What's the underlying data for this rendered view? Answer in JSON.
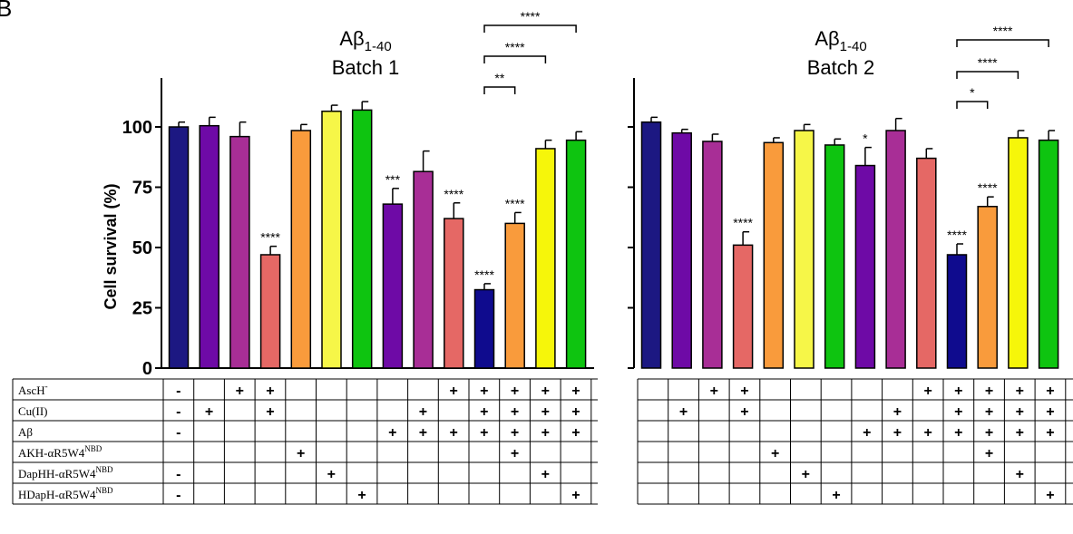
{
  "figure": {
    "panel_letter": "B"
  },
  "chart_data": [
    {
      "type": "bar",
      "title": "Aβ1-40",
      "title_main": "Aβ",
      "title_sub": "1-40",
      "subtitle": "Batch 1",
      "ylabel": "Cell survival (%)",
      "ylim": [
        0,
        120
      ],
      "yticks": [
        0,
        25,
        50,
        75,
        100
      ],
      "grid": false,
      "values": [
        100,
        100.5,
        96,
        47,
        98.5,
        106.5,
        107,
        68,
        81.5,
        62,
        32.5,
        60,
        91,
        94.5
      ],
      "errors": [
        2,
        3.5,
        6,
        3.5,
        2.5,
        2.5,
        3.5,
        6.5,
        8.5,
        6.5,
        2.5,
        4.5,
        3.5,
        3.5
      ],
      "colors": [
        "#1c1882",
        "#6e0aa6",
        "#a82e96",
        "#e56865",
        "#f99b3c",
        "#f6f648",
        "#0ec410",
        "#6e0aa6",
        "#a82e96",
        "#e56865",
        "#0f0b8e",
        "#f99b3c",
        "#f6f60a",
        "#0ec410"
      ],
      "significance": [
        "",
        "",
        "",
        "****",
        "",
        "",
        "",
        "***",
        "",
        "****",
        "****",
        "****",
        "",
        ""
      ],
      "comparisons": [
        {
          "from": 10,
          "to": 11,
          "label": "**"
        },
        {
          "from": 10,
          "to": 12,
          "label": "****"
        },
        {
          "from": 10,
          "to": 13,
          "label": "****"
        }
      ]
    },
    {
      "type": "bar",
      "title": "Aβ1-40",
      "title_main": "Aβ",
      "title_sub": "1-40",
      "subtitle": "Batch 2",
      "ylabel": "",
      "ylim": [
        0,
        120
      ],
      "yticks": [
        0,
        25,
        50,
        75,
        100
      ],
      "grid": false,
      "values": [
        102,
        97.5,
        94,
        51,
        93.5,
        98.5,
        92.5,
        84,
        98.5,
        87,
        47,
        67,
        95.5,
        94.5
      ],
      "errors": [
        2,
        1.5,
        3,
        5.5,
        2,
        2.5,
        2.5,
        7.5,
        5,
        4,
        4.5,
        4,
        3,
        4
      ],
      "colors": [
        "#1c1882",
        "#6e0aa6",
        "#a82e96",
        "#e56865",
        "#f99b3c",
        "#f6f648",
        "#0ec410",
        "#6e0aa6",
        "#a82e96",
        "#e56865",
        "#0f0b8e",
        "#f99b3c",
        "#f6f60a",
        "#0ec410"
      ],
      "significance": [
        "",
        "",
        "",
        "****",
        "",
        "",
        "",
        "*",
        "",
        "",
        "****",
        "****",
        "",
        ""
      ],
      "comparisons": [
        {
          "from": 10,
          "to": 11,
          "label": "*"
        },
        {
          "from": 10,
          "to": 12,
          "label": "****"
        },
        {
          "from": 10,
          "to": 13,
          "label": "****"
        }
      ]
    }
  ],
  "conditions_table": {
    "rows": [
      {
        "label": "AscH",
        "label_sup": "-",
        "cells1": [
          "-",
          "",
          "+",
          "+",
          "",
          "",
          "",
          "",
          "",
          "+",
          "+",
          "+",
          "+",
          "+"
        ],
        "cells2": [
          "",
          "",
          "+",
          "+",
          "",
          "",
          "",
          "",
          "",
          "+",
          "+",
          "+",
          "+",
          "+"
        ]
      },
      {
        "label": "Cu(II)",
        "label_sup": "",
        "cells1": [
          "-",
          "+",
          "",
          "+",
          "",
          "",
          "",
          "",
          "+",
          "",
          "+",
          "+",
          "+",
          "+"
        ],
        "cells2": [
          "",
          "+",
          "",
          "+",
          "",
          "",
          "",
          "",
          "+",
          "",
          "+",
          "+",
          "+",
          "+"
        ]
      },
      {
        "label": "Aβ",
        "label_sup": "",
        "cells1": [
          "-",
          "",
          "",
          "",
          "",
          "",
          "",
          "+",
          "+",
          "+",
          "+",
          "+",
          "+",
          "+"
        ],
        "cells2": [
          "",
          "",
          "",
          "",
          "",
          "",
          "",
          "+",
          "+",
          "+",
          "+",
          "+",
          "+",
          "+"
        ]
      },
      {
        "label": "AKH-αR5W4",
        "label_sup": "NBD",
        "cells1": [
          "",
          "",
          "",
          "",
          "+",
          "",
          "",
          "",
          "",
          "",
          "",
          "+",
          "",
          ""
        ],
        "cells2": [
          "",
          "",
          "",
          "",
          "+",
          "",
          "",
          "",
          "",
          "",
          "",
          "+",
          "",
          ""
        ]
      },
      {
        "label": "DapHH-αR5W4",
        "label_sup": "NBD",
        "cells1": [
          "-",
          "",
          "",
          "",
          "",
          "+",
          "",
          "",
          "",
          "",
          "",
          "",
          "+",
          ""
        ],
        "cells2": [
          "",
          "",
          "",
          "",
          "",
          "+",
          "",
          "",
          "",
          "",
          "",
          "",
          "+",
          ""
        ]
      },
      {
        "label": "HDapH-αR5W4",
        "label_sup": "NBD",
        "cells1": [
          "-",
          "",
          "",
          "",
          "",
          "",
          "+",
          "",
          "",
          "",
          "",
          "",
          "",
          "+"
        ],
        "cells2": [
          "",
          "",
          "",
          "",
          "",
          "",
          "+",
          "",
          "",
          "",
          "",
          "",
          "",
          "+"
        ]
      }
    ]
  }
}
